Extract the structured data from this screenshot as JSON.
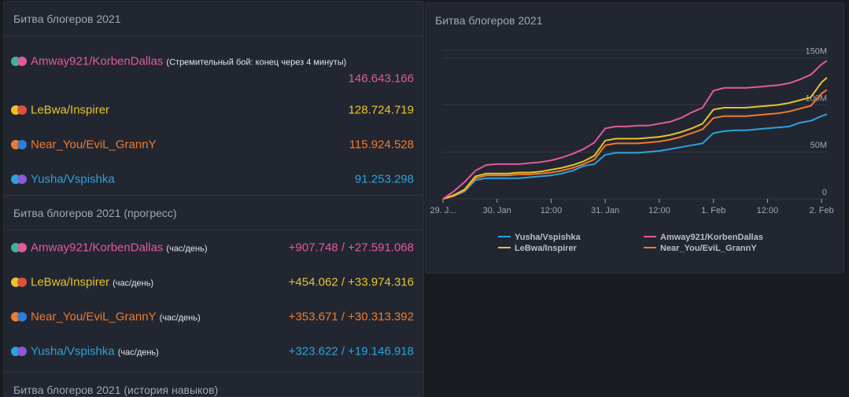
{
  "colors": {
    "amway": "#e05b9c",
    "lebwa": "#e6c42d",
    "near": "#f07b2c",
    "yusha": "#2ca3dc",
    "teal": "#3bb59a",
    "red": "#e0503a",
    "purple": "#8a5bd6",
    "blue": "#2f7ed8"
  },
  "left_panel": {
    "title": "Битва блогеров 2021",
    "rows": [
      {
        "name": "Amway921/KorbenDallas",
        "note": "(Стремительный бой: конец через 4 минуты)",
        "value": "146.643.166"
      },
      {
        "name": "LeBwa/Inspirer",
        "value": "128.724.719"
      },
      {
        "name": "Near_You/EviL_GrannY",
        "value": "115.924.528"
      },
      {
        "name": "Yusha/Vspishka",
        "value": "91.253.298"
      }
    ]
  },
  "progress_panel": {
    "title": "Битва блогеров 2021 (прогресс)",
    "rows": [
      {
        "name": "Amway921/KorbenDallas",
        "note": "(час/день)",
        "value": "+907.748 / +27.591.068"
      },
      {
        "name": "LeBwa/Inspirer",
        "note": "(час/день)",
        "value": "+454.062 / +33.974.316"
      },
      {
        "name": "Near_You/EviL_GrannY",
        "note": "(час/день)",
        "value": "+353.671 / +30.313.392"
      },
      {
        "name": "Yusha/Vspishka",
        "note": "(час/день)",
        "value": "+323.622 / +19.146.918"
      }
    ]
  },
  "history_panel": {
    "title": "Битва блогеров 2021 (история навыков)"
  },
  "chart_panel": {
    "title": "Битва блогеров 2021"
  },
  "chart_data": {
    "type": "line",
    "title": "Битва блогеров 2021",
    "xlabel": "",
    "ylabel": "",
    "x_ticks": [
      "29. J...",
      "30. Jan",
      "12:00",
      "31. Jan",
      "12:00",
      "1. Feb",
      "12:00",
      "2. Feb"
    ],
    "x_tick_positions": [
      0.0,
      0.5,
      1.0,
      1.5,
      2.0,
      2.5,
      3.0,
      3.5
    ],
    "y_ticks": [
      "0",
      "50M",
      "100M",
      "150M"
    ],
    "y_tick_values": [
      0,
      50,
      100,
      150
    ],
    "ylim": [
      0,
      150
    ],
    "xlim": [
      0,
      3.55
    ],
    "y_unit": "M",
    "grid": true,
    "legend_position": "bottom",
    "x": [
      0.0,
      0.1,
      0.2,
      0.3,
      0.4,
      0.5,
      0.6,
      0.7,
      0.8,
      0.9,
      1.0,
      1.1,
      1.2,
      1.3,
      1.4,
      1.5,
      1.6,
      1.7,
      1.8,
      1.9,
      2.0,
      2.1,
      2.2,
      2.3,
      2.4,
      2.5,
      2.6,
      2.7,
      2.8,
      2.9,
      3.0,
      3.1,
      3.2,
      3.3,
      3.4,
      3.5,
      3.55
    ],
    "series": [
      {
        "name": "Yusha/Vspishka",
        "color": "#2ca3dc",
        "values": [
          0,
          3,
          8,
          20,
          22,
          22,
          22,
          22,
          23,
          24,
          25,
          27,
          30,
          35,
          37,
          47,
          49,
          49,
          49,
          50,
          51,
          53,
          55,
          57,
          59,
          70,
          72,
          73,
          73,
          74,
          75,
          76,
          77,
          81,
          83,
          88,
          90
        ]
      },
      {
        "name": "Amway921/KorbenDallas",
        "color": "#e05b9c",
        "values": [
          0,
          8,
          18,
          30,
          36,
          37,
          37,
          37,
          38,
          39,
          41,
          44,
          48,
          53,
          60,
          75,
          77,
          77,
          78,
          78,
          80,
          82,
          86,
          92,
          97,
          115,
          118,
          118,
          118,
          119,
          120,
          121,
          123,
          127,
          132,
          143,
          147
        ]
      },
      {
        "name": "LeBwa/Inspirer",
        "color": "#e6c42d",
        "values": [
          0,
          4,
          10,
          24,
          27,
          27,
          27,
          28,
          28,
          29,
          31,
          33,
          36,
          40,
          46,
          62,
          64,
          64,
          64,
          65,
          66,
          68,
          71,
          75,
          80,
          95,
          97,
          97,
          97,
          98,
          99,
          100,
          102,
          105,
          108,
          124,
          129
        ]
      },
      {
        "name": "Near_You/EviL_GrannY",
        "color": "#f07b2c",
        "values": [
          0,
          3,
          9,
          22,
          25,
          25,
          25,
          26,
          26,
          27,
          28,
          30,
          33,
          37,
          42,
          57,
          59,
          59,
          59,
          60,
          61,
          63,
          66,
          70,
          74,
          86,
          88,
          88,
          88,
          89,
          90,
          91,
          93,
          96,
          99,
          112,
          116
        ]
      }
    ]
  }
}
